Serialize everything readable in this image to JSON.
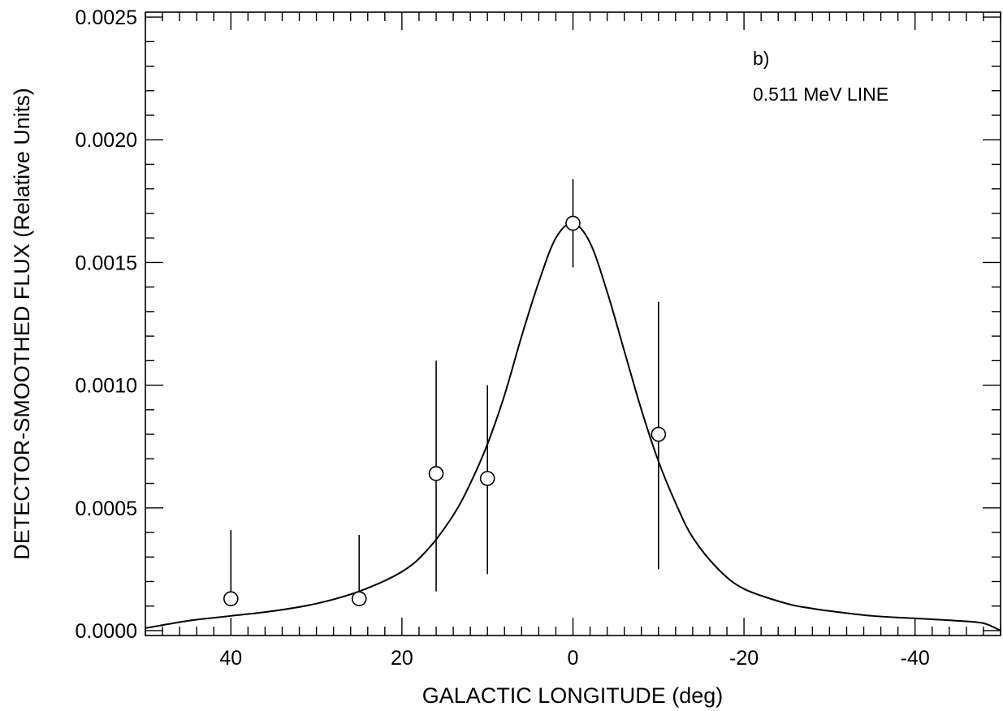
{
  "chart_data": {
    "type": "scatter",
    "title": "",
    "xlabel": "GALACTIC LONGITUDE (deg)",
    "ylabel": "DETECTOR-SMOOTHED FLUX  (Relative Units)",
    "xlim": [
      50,
      -50
    ],
    "ylim": [
      -2e-05,
      0.00252
    ],
    "x_ticks": [
      40,
      20,
      0,
      -20,
      -40
    ],
    "x_tick_labels": [
      "40",
      "20",
      "0",
      "-20",
      "-40"
    ],
    "y_ticks": [
      0.0,
      0.0005,
      0.001,
      0.0015,
      0.002,
      0.0025
    ],
    "y_tick_labels": [
      "0.0000",
      "0.0005",
      "0.0010",
      "0.0015",
      "0.0020",
      "0.0025"
    ],
    "annotations": [
      "b)",
      "0.511 MeV LINE"
    ],
    "grid": false,
    "series": [
      {
        "kind": "points_with_error_bars",
        "points": [
          {
            "x": 40,
            "y": 0.00013,
            "err_low": 0.00013,
            "err_high": 0.00041
          },
          {
            "x": 25,
            "y": 0.00013,
            "err_low": 0.00013,
            "err_high": 0.00039
          },
          {
            "x": 16,
            "y": 0.00064,
            "err_low": 0.00016,
            "err_high": 0.0011
          },
          {
            "x": 10,
            "y": 0.00062,
            "err_low": 0.00023,
            "err_high": 0.001
          },
          {
            "x": 0,
            "y": 0.00166,
            "err_low": 0.00148,
            "err_high": 0.00184
          },
          {
            "x": -10,
            "y": 0.0008,
            "err_low": 0.00025,
            "err_high": 0.00134
          }
        ]
      },
      {
        "kind": "model_curve",
        "x": [
          50,
          45,
          40,
          35,
          30,
          25,
          20,
          17,
          14,
          12,
          10,
          8,
          6,
          4,
          2,
          0,
          -2,
          -4,
          -6,
          -8,
          -10,
          -12,
          -14,
          -17,
          -20,
          -25,
          -28,
          -30,
          -35,
          -40,
          -45,
          -48,
          -50
        ],
        "y": [
          1e-05,
          4e-05,
          6e-05,
          8e-05,
          0.00011,
          0.00016,
          0.00024,
          0.00033,
          0.00047,
          0.0006,
          0.00076,
          0.00096,
          0.0012,
          0.00142,
          0.0016,
          0.00166,
          0.00158,
          0.00138,
          0.00114,
          0.0009,
          0.00069,
          0.00052,
          0.00038,
          0.00025,
          0.00017,
          0.00011,
          9e-05,
          8e-05,
          6e-05,
          5e-05,
          4e-05,
          3e-05,
          0.0
        ]
      }
    ]
  }
}
